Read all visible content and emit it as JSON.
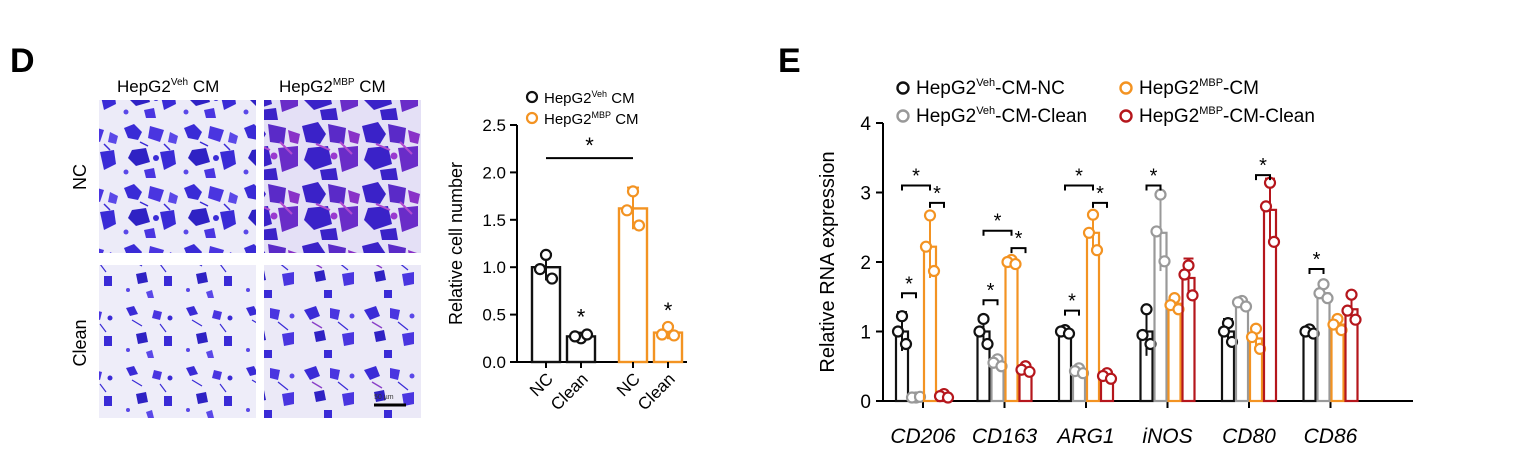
{
  "panel_D": {
    "letter": "D",
    "image_cols": [
      {
        "base": "HepG2",
        "sup": "Veh",
        "tail": " CM"
      },
      {
        "base": "HepG2",
        "sup": "MBP",
        "tail": " CM"
      }
    ],
    "image_rows": [
      "NC",
      "Clean"
    ],
    "scale_bar_label": "50 µm"
  },
  "panel_E": {
    "letter": "E"
  },
  "colors": {
    "black": "#111111",
    "orange": "#f39322",
    "gray": "#999999",
    "darkred": "#b5161c",
    "stain_blue": "#3a2bd6",
    "stain_purple": "#7e2cc8",
    "bg_light": "#e8e6f6"
  },
  "chart_data": [
    {
      "type": "bar",
      "ylabel": "Relative cell number",
      "ylim": [
        0,
        2.5
      ],
      "yticks": [
        "0.0",
        "0.5",
        "1.0",
        "1.5",
        "2.0",
        "2.5"
      ],
      "groups": [
        {
          "ticks": [
            "NC",
            "Clean"
          ]
        },
        {
          "ticks": [
            "NC",
            "Clean"
          ]
        }
      ],
      "legend": [
        {
          "base": "HepG2",
          "sup": "Veh",
          "tail": " CM",
          "color": "black"
        },
        {
          "base": "HepG2",
          "sup": "MBP",
          "tail": " CM",
          "color": "orange"
        }
      ],
      "bars": [
        {
          "label": "NC",
          "series": 0,
          "value": 1.0,
          "err": 0.14,
          "points": [
            1.13,
            0.98,
            0.88
          ]
        },
        {
          "label": "Clean",
          "series": 0,
          "value": 0.27,
          "err": 0.04,
          "points": [
            0.25,
            0.27,
            0.29
          ]
        },
        {
          "label": "NC",
          "series": 1,
          "value": 1.62,
          "err": 0.22,
          "points": [
            1.8,
            1.6,
            1.44
          ]
        },
        {
          "label": "Clean",
          "series": 1,
          "value": 0.31,
          "err": 0.07,
          "points": [
            0.37,
            0.29,
            0.28
          ]
        }
      ],
      "significance": [
        {
          "bar": 1,
          "symbol": "*"
        },
        {
          "bar": 3,
          "symbol": "*"
        },
        {
          "from": 0,
          "to": 2,
          "level": 2.15,
          "symbol": "*"
        }
      ]
    },
    {
      "type": "bar",
      "ylabel": "Relative RNA expression",
      "ylim": [
        0,
        4
      ],
      "yticks": [
        "0",
        "1",
        "2",
        "3",
        "4"
      ],
      "categories": [
        "CD206",
        "CD163",
        "ARG1",
        "iNOS",
        "CD80",
        "CD86"
      ],
      "legend": [
        {
          "base": "HepG2",
          "sup": "Veh",
          "tail": "-CM-NC",
          "color": "black"
        },
        {
          "base": "HepG2",
          "sup": "MBP",
          "tail": "-CM",
          "color": "orange"
        },
        {
          "base": "HepG2",
          "sup": "Veh",
          "tail": "-CM-Clean",
          "color": "gray"
        },
        {
          "base": "HepG2",
          "sup": "MBP",
          "tail": "-CM-Clean",
          "color": "darkred"
        }
      ],
      "series_order": [
        "black",
        "gray",
        "orange",
        "darkred"
      ],
      "bars": [
        [
          {
            "value": 1.0,
            "err": 0.28,
            "points": [
              1.22,
              1.0,
              0.82
            ]
          },
          {
            "value": 0.05,
            "err": 0.02,
            "points": [
              0.05,
              0.05,
              0.06
            ]
          },
          {
            "value": 2.22,
            "err": 0.45,
            "points": [
              2.67,
              2.22,
              1.87
            ]
          },
          {
            "value": 0.07,
            "err": 0.04,
            "points": [
              0.1,
              0.07,
              0.05
            ]
          }
        ],
        [
          {
            "value": 1.0,
            "err": 0.22,
            "points": [
              1.18,
              1.0,
              0.82
            ]
          },
          {
            "value": 0.55,
            "err": 0.09,
            "points": [
              0.6,
              0.55,
              0.5
            ]
          },
          {
            "value": 2.0,
            "err": 0.05,
            "points": [
              2.03,
              2.0,
              1.97
            ]
          },
          {
            "value": 0.45,
            "err": 0.08,
            "points": [
              0.5,
              0.45,
              0.42
            ]
          }
        ],
        [
          {
            "value": 1.0,
            "err": 0.04,
            "points": [
              1.02,
              1.0,
              0.97
            ]
          },
          {
            "value": 0.43,
            "err": 0.05,
            "points": [
              0.47,
              0.43,
              0.4
            ]
          },
          {
            "value": 2.42,
            "err": 0.28,
            "points": [
              2.68,
              2.42,
              2.17
            ]
          },
          {
            "value": 0.36,
            "err": 0.06,
            "points": [
              0.4,
              0.36,
              0.32
            ]
          }
        ],
        [
          {
            "value": 1.0,
            "err": 0.35,
            "points": [
              1.32,
              0.95,
              0.82
            ]
          },
          {
            "value": 2.42,
            "err": 0.55,
            "points": [
              2.97,
              2.44,
              2.01
            ]
          },
          {
            "value": 1.4,
            "err": 0.1,
            "points": [
              1.48,
              1.38,
              1.32
            ]
          },
          {
            "value": 1.77,
            "err": 0.28,
            "points": [
              1.95,
              1.82,
              1.52
            ]
          }
        ],
        [
          {
            "value": 1.0,
            "err": 0.18,
            "points": [
              1.12,
              1.0,
              0.85
            ]
          },
          {
            "value": 1.4,
            "err": 0.06,
            "points": [
              1.44,
              1.42,
              1.36
            ]
          },
          {
            "value": 0.9,
            "err": 0.15,
            "points": [
              1.04,
              0.92,
              0.75
            ]
          },
          {
            "value": 2.75,
            "err": 0.45,
            "points": [
              3.14,
              2.8,
              2.29
            ]
          }
        ],
        [
          {
            "value": 1.0,
            "err": 0.04,
            "points": [
              1.03,
              1.0,
              0.97
            ]
          },
          {
            "value": 1.55,
            "err": 0.12,
            "points": [
              1.68,
              1.55,
              1.48
            ]
          },
          {
            "value": 1.1,
            "err": 0.1,
            "points": [
              1.18,
              1.1,
              1.02
            ]
          },
          {
            "value": 1.32,
            "err": 0.18,
            "points": [
              1.53,
              1.3,
              1.17
            ]
          }
        ]
      ],
      "significance": [
        {
          "cat": 0,
          "from": 0,
          "to": 2,
          "level": 3.1,
          "symbol": "*"
        },
        {
          "cat": 0,
          "from": 0,
          "to": 1,
          "level": 1.55,
          "symbol": "*"
        },
        {
          "cat": 0,
          "from": 2,
          "to": 3,
          "level": 2.85,
          "symbol": "*"
        },
        {
          "cat": 1,
          "from": 0,
          "to": 2,
          "level": 2.45,
          "symbol": "*"
        },
        {
          "cat": 1,
          "from": 0,
          "to": 1,
          "level": 1.45,
          "symbol": "*"
        },
        {
          "cat": 1,
          "from": 2,
          "to": 3,
          "level": 2.2,
          "symbol": "*"
        },
        {
          "cat": 2,
          "from": 0,
          "to": 2,
          "level": 3.1,
          "symbol": "*"
        },
        {
          "cat": 2,
          "from": 0,
          "to": 1,
          "level": 1.3,
          "symbol": "*"
        },
        {
          "cat": 2,
          "from": 2,
          "to": 3,
          "level": 2.85,
          "symbol": "*"
        },
        {
          "cat": 3,
          "from": 0,
          "to": 1,
          "level": 3.1,
          "symbol": "*"
        },
        {
          "cat": 4,
          "from": 2,
          "to": 3,
          "level": 3.25,
          "symbol": "*"
        },
        {
          "cat": 5,
          "from": 0,
          "to": 1,
          "level": 1.9,
          "symbol": "*"
        }
      ]
    }
  ]
}
